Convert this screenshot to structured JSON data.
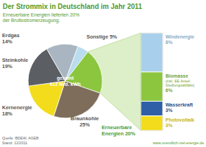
{
  "chart_data": [
    {
      "type": "pie",
      "title": "Der Strommix in Deutschland im Jahr 2011",
      "subtitle": "Erneuerbare Energien lieferten 20%\nder Bruttostromerzeugung.",
      "categories": [
        "Sonstige",
        "Erneuerbare Energien",
        "Braunkohle",
        "Kernenergie",
        "Steinkohle",
        "Erdgas"
      ],
      "values": [
        5,
        20,
        25,
        18,
        19,
        14
      ],
      "value_labels": [
        "5%",
        "20%",
        "25%",
        "18%",
        "19%",
        "14%"
      ],
      "colors": [
        "#b9dcef",
        "#8cc63f",
        "#7f6d5c",
        "#f2dc1b",
        "#5b5f63",
        "#a9b5c1"
      ],
      "data_labels": true,
      "annotations": [
        "gesamt",
        "612 Mrd. kWh",
        "Quelle: BDEW, AGEB",
        "Stand: 12/2011",
        "www.unendlich-viel-energie.de"
      ]
    },
    {
      "type": "bar",
      "stacked": true,
      "categories": [
        null
      ],
      "ylim": [
        0,
        20
      ],
      "tick_labels": false,
      "data_labels": true,
      "series": [
        {
          "name": "Windenergie",
          "color": "#a8d0ec",
          "values": [
            8
          ],
          "value_labels": [
            "8%"
          ]
        },
        {
          "name": "Biomasse (inkl. EE Anteil Siedlungsabfälle)",
          "color": "#8cc63f",
          "values": [
            6
          ],
          "value_labels": [
            "6%"
          ]
        },
        {
          "name": "Wasserkraft",
          "color": "#2f5fa6",
          "values": [
            3
          ],
          "value_labels": [
            "3%"
          ]
        },
        {
          "name": "Photovoltaik",
          "color": "#f2dc1b",
          "values": [
            3
          ],
          "value_labels": [
            "3%"
          ]
        }
      ]
    }
  ]
}
